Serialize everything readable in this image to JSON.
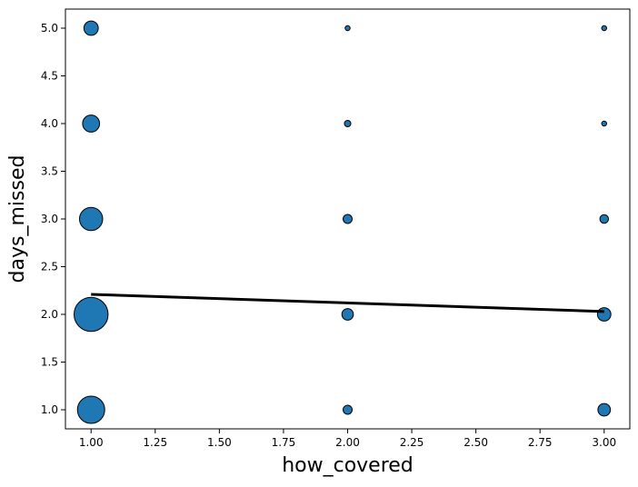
{
  "chart_data": {
    "type": "scatter",
    "title": "",
    "xlabel": "how_covered",
    "ylabel": "days_missed",
    "xlim": [
      0.9,
      3.1
    ],
    "ylim": [
      0.8,
      5.2
    ],
    "xticks": [
      "1.00",
      "1.25",
      "1.50",
      "1.75",
      "2.00",
      "2.25",
      "2.50",
      "2.75",
      "3.00"
    ],
    "yticks": [
      "1.0",
      "1.5",
      "2.0",
      "2.5",
      "3.0",
      "3.5",
      "4.0",
      "4.5",
      "5.0"
    ],
    "grid": false,
    "points": [
      {
        "x": 1,
        "y": 1,
        "size": 9
      },
      {
        "x": 1,
        "y": 2,
        "size": 14
      },
      {
        "x": 1,
        "y": 3,
        "size": 6.5
      },
      {
        "x": 1,
        "y": 4,
        "size": 3.5
      },
      {
        "x": 1,
        "y": 5,
        "size": 2.5
      },
      {
        "x": 2,
        "y": 1,
        "size": 1
      },
      {
        "x": 2,
        "y": 2,
        "size": 1.6
      },
      {
        "x": 2,
        "y": 3,
        "size": 1
      },
      {
        "x": 2,
        "y": 4,
        "size": 0.5
      },
      {
        "x": 2,
        "y": 5,
        "size": 0.3
      },
      {
        "x": 3,
        "y": 1,
        "size": 1.9
      },
      {
        "x": 3,
        "y": 2,
        "size": 2.2
      },
      {
        "x": 3,
        "y": 3,
        "size": 0.9
      },
      {
        "x": 3,
        "y": 4,
        "size": 0.3
      },
      {
        "x": 3,
        "y": 5,
        "size": 0.3
      }
    ],
    "trend_line": {
      "x": [
        1,
        3
      ],
      "y": [
        2.21,
        2.03
      ]
    },
    "marker_color": "#1f77b4",
    "edge_color": "#000000",
    "line_color": "#000000"
  }
}
